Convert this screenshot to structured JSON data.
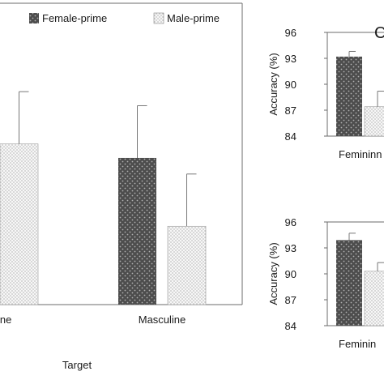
{
  "figure": {
    "legend": {
      "female_label": "Female-prime",
      "male_label": "Male-prime"
    }
  },
  "chart_data": [
    {
      "type": "bar",
      "panel": "main (left, cropped)",
      "xlabel": "Target",
      "ylabel": "",
      "categories": [
        "ine",
        "Masculine"
      ],
      "category_labels_note": "first category label is cropped at the left edge",
      "series": [
        {
          "name": "Female-prime",
          "values": [
            null,
            87.3
          ],
          "errors": [
            null,
            2.6
          ]
        },
        {
          "name": "Male-prime",
          "values": [
            88.0,
            83.9
          ],
          "errors": [
            2.6,
            2.6
          ]
        }
      ],
      "ylim": [
        80,
        95
      ],
      "grid": false,
      "legend": "top"
    },
    {
      "type": "bar",
      "panel": "C (top-right, cropped)",
      "panel_letter": "C",
      "xlabel": "",
      "ylabel": "Accuracy (%)",
      "categories": [
        "Femininn"
      ],
      "yticks": [
        84,
        87,
        90,
        93,
        96
      ],
      "ylim": [
        84,
        96
      ],
      "series": [
        {
          "name": "Female-prime",
          "values": [
            93.2
          ],
          "errors": [
            0.6
          ]
        },
        {
          "name": "Male-prime",
          "values": [
            87.4
          ],
          "errors": [
            1.8
          ]
        }
      ],
      "grid": false
    },
    {
      "type": "bar",
      "panel": "bottom-right (cropped)",
      "xlabel": "",
      "ylabel": "Accuracy (%)",
      "categories": [
        "Feminin"
      ],
      "yticks": [
        84,
        87,
        90,
        93,
        96
      ],
      "ylim": [
        84,
        96
      ],
      "series": [
        {
          "name": "Female-prime",
          "values": [
            93.9
          ],
          "errors": [
            0.8
          ]
        },
        {
          "name": "Male-prime",
          "values": [
            90.3
          ],
          "errors": [
            1.0
          ]
        }
      ],
      "grid": false
    }
  ]
}
